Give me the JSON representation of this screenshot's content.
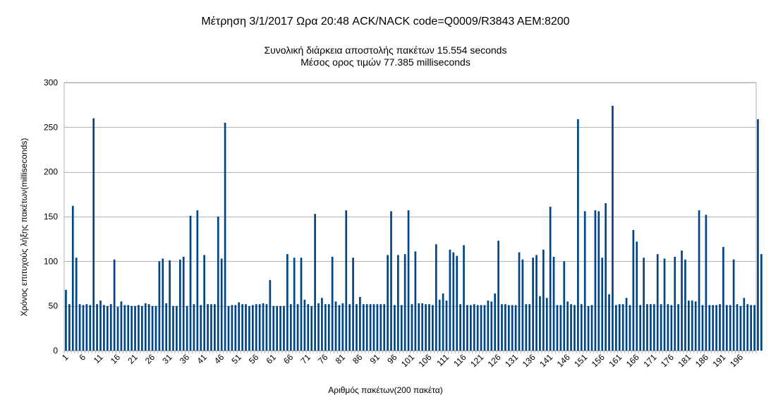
{
  "chart_data": {
    "type": "bar",
    "title": "Μέτρηση 3/1/2017 Ωρα 20:48 ACK/NACK code=Q0009/R3843 AEM:8200",
    "subtitle_lines": [
      "Συνολική διάρκεια αποστολής πακέτων 15.554 seconds",
      "Μέσος ορος τιμών 77.385 milliseconds"
    ],
    "xlabel": "Αριθμός πακέτων(200 πακέτα)",
    "ylabel": "Χρόνος επιτυχούς λήξης πακέτων(milliseconds)",
    "ylim": [
      0,
      300
    ],
    "y_ticks": [
      0,
      50,
      100,
      150,
      200,
      250,
      300
    ],
    "x_tick_labels": [
      "1",
      "6",
      "11",
      "16",
      "21",
      "26",
      "31",
      "36",
      "41",
      "46",
      "51",
      "56",
      "61",
      "66",
      "71",
      "76",
      "81",
      "86",
      "91",
      "96",
      "101",
      "106",
      "111",
      "116",
      "121",
      "126",
      "131",
      "136",
      "141",
      "146",
      "151",
      "156",
      "161",
      "166",
      "171",
      "176",
      "181",
      "186",
      "191",
      "196"
    ],
    "grid": true,
    "bar_color": "#004586",
    "categories_count": 200,
    "values": [
      68,
      52,
      162,
      104,
      52,
      51,
      52,
      51,
      260,
      52,
      56,
      51,
      50,
      52,
      102,
      49,
      55,
      51,
      51,
      50,
      50,
      51,
      50,
      53,
      52,
      50,
      50,
      100,
      103,
      53,
      101,
      50,
      50,
      102,
      105,
      50,
      151,
      52,
      157,
      51,
      107,
      52,
      52,
      52,
      150,
      103,
      255,
      50,
      51,
      51,
      54,
      52,
      52,
      50,
      51,
      52,
      52,
      53,
      52,
      79,
      50,
      50,
      50,
      50,
      108,
      52,
      104,
      52,
      104,
      57,
      52,
      50,
      153,
      53,
      59,
      52,
      52,
      105,
      55,
      51,
      53,
      157,
      52,
      104,
      52,
      60,
      52,
      52,
      52,
      52,
      52,
      52,
      52,
      107,
      156,
      51,
      107,
      51,
      108,
      157,
      52,
      111,
      53,
      53,
      52,
      52,
      51,
      119,
      57,
      64,
      56,
      113,
      110,
      106,
      52,
      118,
      51,
      51,
      52,
      51,
      51,
      51,
      56,
      55,
      64,
      123,
      52,
      52,
      51,
      51,
      51,
      110,
      102,
      52,
      52,
      104,
      107,
      61,
      113,
      59,
      161,
      105,
      51,
      51,
      100,
      55,
      52,
      51,
      259,
      52,
      156,
      50,
      51,
      157,
      156,
      104,
      165,
      63,
      274,
      51,
      52,
      52,
      59,
      51,
      135,
      122,
      51,
      104,
      52,
      52,
      52,
      108,
      52,
      103,
      52,
      51,
      105,
      52,
      112,
      102,
      56,
      56,
      55,
      157,
      51,
      152,
      51,
      51,
      51,
      52,
      116,
      51,
      51,
      102,
      52,
      50,
      59,
      52,
      51,
      51,
      259,
      108
    ]
  }
}
